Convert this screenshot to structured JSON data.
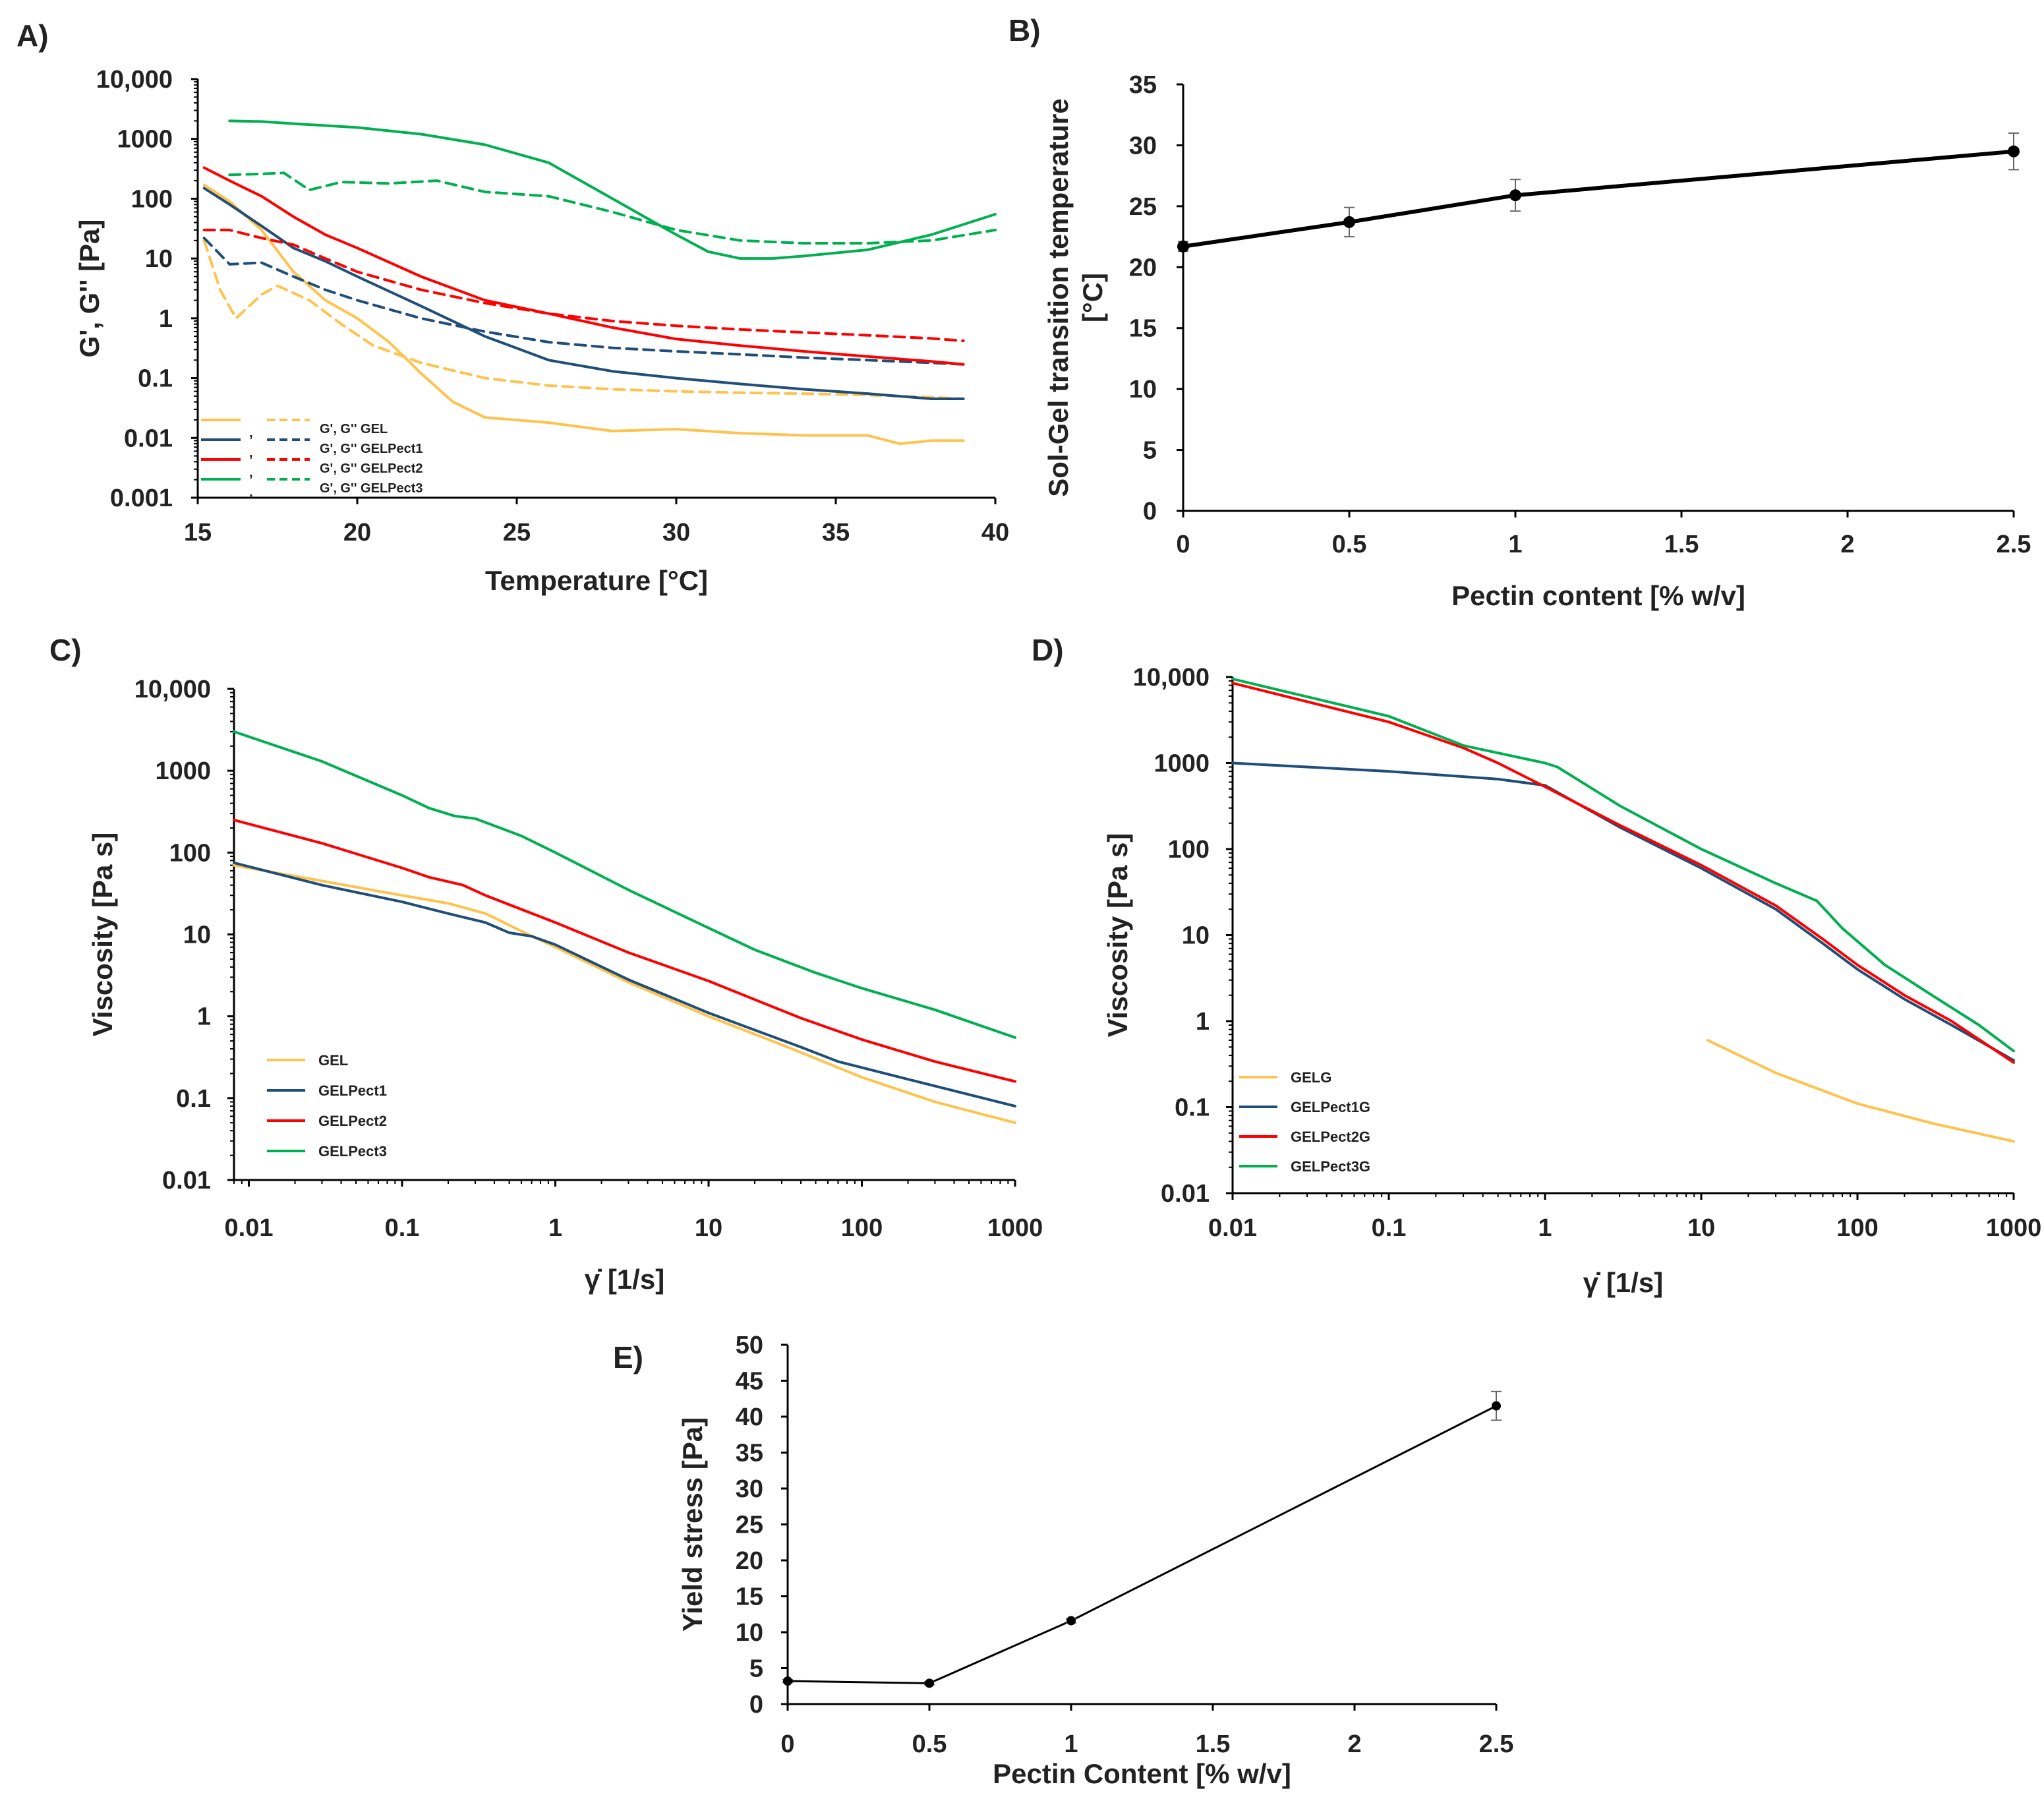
{
  "chart_data": [
    {
      "panel": "A)",
      "type": "line",
      "xlabel": "Temperature [°C]",
      "ylabel": "G', G'' [Pa]",
      "xlim": [
        15,
        40
      ],
      "ylim": [
        0.001,
        10000
      ],
      "yscale": "log",
      "xticks": [
        "15",
        "20",
        "25",
        "30",
        "35",
        "40"
      ],
      "yticks": [
        "10,000",
        "1000",
        "100",
        "10",
        "1",
        "0.1",
        "0.01",
        "0.001"
      ],
      "legend": [
        "G', G'' GEL",
        "G', G'' GELPect1",
        "G', G'' GELPect2",
        "G', G'' GELPect3"
      ],
      "legend_sep": ",",
      "legend_position": "bottom-left",
      "series": [
        {
          "name": "G' GEL",
          "color": "#FFC34D",
          "dash": false,
          "x": [
            15.2,
            16,
            17,
            18,
            19,
            20,
            21,
            22,
            23,
            24,
            26,
            28,
            30,
            32,
            34,
            36,
            37,
            38,
            39
          ],
          "y": [
            170,
            90,
            30,
            6,
            2,
            1,
            0.4,
            0.12,
            0.04,
            0.022,
            0.018,
            0.013,
            0.014,
            0.012,
            0.011,
            0.011,
            0.008,
            0.009,
            0.009
          ]
        },
        {
          "name": "G'' GEL",
          "color": "#FFC34D",
          "dash": true,
          "x": [
            15.2,
            15.7,
            16.2,
            17,
            17.5,
            18.5,
            19.5,
            20.5,
            22,
            24,
            26,
            28,
            30,
            32,
            34,
            36,
            38,
            39
          ],
          "y": [
            20,
            3,
            1,
            2.5,
            3.5,
            2,
            0.8,
            0.35,
            0.18,
            0.1,
            0.075,
            0.065,
            0.06,
            0.057,
            0.055,
            0.052,
            0.048,
            0.045
          ]
        },
        {
          "name": "G' GELPect1",
          "color": "#1F4E79",
          "dash": false,
          "x": [
            15.2,
            16,
            17,
            18,
            19,
            20,
            22,
            24,
            26,
            28,
            30,
            32,
            34,
            36,
            38,
            39
          ],
          "y": [
            150,
            80,
            35,
            15,
            9,
            5,
            1.6,
            0.5,
            0.2,
            0.13,
            0.1,
            0.08,
            0.065,
            0.055,
            0.045,
            0.045
          ]
        },
        {
          "name": "G'' GELPect1",
          "color": "#1F4E79",
          "dash": true,
          "x": [
            15.2,
            16,
            17,
            18,
            19,
            20,
            22,
            24,
            26,
            28,
            30,
            32,
            34,
            36,
            38,
            39
          ],
          "y": [
            22,
            8,
            8.5,
            5,
            3,
            2,
            1,
            0.6,
            0.4,
            0.32,
            0.28,
            0.25,
            0.22,
            0.2,
            0.18,
            0.17
          ]
        },
        {
          "name": "G' GELPect2",
          "color": "#FF0000",
          "dash": false,
          "x": [
            15.2,
            16,
            17,
            18,
            19,
            20,
            22,
            24,
            26,
            28,
            30,
            32,
            34,
            36,
            38,
            39
          ],
          "y": [
            330,
            200,
            110,
            50,
            25,
            15,
            5,
            2,
            1.2,
            0.7,
            0.45,
            0.35,
            0.28,
            0.23,
            0.19,
            0.17
          ]
        },
        {
          "name": "G'' GELPect2",
          "color": "#FF0000",
          "dash": true,
          "x": [
            15.2,
            16,
            17,
            18,
            19,
            20,
            22,
            24,
            26,
            28,
            30,
            32,
            34,
            36,
            38,
            39
          ],
          "y": [
            30,
            30,
            22,
            17,
            10,
            6,
            3,
            1.8,
            1.2,
            0.9,
            0.75,
            0.65,
            0.58,
            0.52,
            0.46,
            0.42
          ]
        },
        {
          "name": "G' GELPect3",
          "color": "#00B050",
          "dash": false,
          "x": [
            16,
            17,
            18,
            20,
            22,
            24,
            26,
            28,
            29,
            30,
            31,
            32,
            33,
            34,
            36,
            38,
            40
          ],
          "y": [
            2000,
            1950,
            1800,
            1550,
            1200,
            800,
            400,
            100,
            50,
            25,
            13,
            10,
            10,
            11,
            14,
            25,
            55
          ]
        },
        {
          "name": "G'' GELPect3",
          "color": "#00B050",
          "dash": true,
          "x": [
            16,
            17,
            17.7,
            18.5,
            19.5,
            21,
            22.5,
            24,
            26,
            28,
            30,
            32,
            34,
            36,
            38,
            40
          ],
          "y": [
            250,
            260,
            270,
            140,
            190,
            180,
            200,
            130,
            110,
            60,
            30,
            20,
            18,
            18,
            20,
            30
          ]
        }
      ]
    },
    {
      "panel": "B)",
      "type": "line",
      "xlabel": "Pectin content [% w/v]",
      "ylabel": "Sol-Gel transition temperature [°C]",
      "ylabel_lines": [
        "Sol-Gel transition temperature",
        "[°C]"
      ],
      "xlim": [
        0,
        2.5
      ],
      "ylim": [
        0,
        35
      ],
      "xticks": [
        "0",
        "0.5",
        "1",
        "1.5",
        "2",
        "2.5"
      ],
      "yticks": [
        "0",
        "5",
        "10",
        "15",
        "20",
        "25",
        "30",
        "35"
      ],
      "series": [
        {
          "name": "Sol-Gel transition temperature",
          "color": "#000000",
          "x": [
            0,
            0.5,
            1,
            2.5
          ],
          "y": [
            21.7,
            23.7,
            25.9,
            29.5
          ],
          "err": [
            0.4,
            1.2,
            1.3,
            1.5
          ]
        }
      ]
    },
    {
      "panel": "C)",
      "type": "line",
      "xlabel": "γ̇ [1/s]",
      "ylabel": "Viscosity  [Pa s]",
      "xscale": "log",
      "yscale": "log",
      "xlim": [
        0.008,
        1000
      ],
      "ylim": [
        0.01,
        10000
      ],
      "xticks": [
        "0.01",
        "0.1",
        "1",
        "10",
        "100",
        "1000"
      ],
      "yticks": [
        "10,000",
        "1000",
        "100",
        "10",
        "1",
        "0.1",
        "0.01"
      ],
      "legend": [
        "GEL",
        "GELPect1",
        "GELPect2",
        "GELPect3"
      ],
      "legend_position": "bottom-left",
      "series": [
        {
          "name": "GEL",
          "color": "#FFC34D",
          "x": [
            0.008,
            0.03,
            0.1,
            0.2,
            0.35,
            0.6,
            1,
            3,
            10,
            30,
            100,
            300,
            1000
          ],
          "y": [
            70,
            45,
            30,
            24,
            18,
            11,
            7,
            2.6,
            1,
            0.45,
            0.18,
            0.09,
            0.05
          ]
        },
        {
          "name": "GELPect1",
          "color": "#1F4E79",
          "x": [
            0.008,
            0.03,
            0.1,
            0.2,
            0.35,
            0.5,
            0.7,
            1,
            3,
            10,
            40,
            70,
            200,
            1000
          ],
          "y": [
            75,
            40,
            25,
            18,
            14,
            10.5,
            9.5,
            7.5,
            2.8,
            1.1,
            0.42,
            0.28,
            0.17,
            0.08
          ]
        },
        {
          "name": "GELPect2",
          "color": "#FF0000",
          "x": [
            0.008,
            0.03,
            0.1,
            0.15,
            0.25,
            0.35,
            1,
            3,
            10,
            20,
            40,
            100,
            300,
            1000
          ],
          "y": [
            250,
            130,
            65,
            50,
            40,
            30,
            14,
            6,
            2.7,
            1.6,
            0.95,
            0.52,
            0.28,
            0.16
          ]
        },
        {
          "name": "GELPect3",
          "color": "#00B050",
          "x": [
            0.008,
            0.03,
            0.1,
            0.15,
            0.22,
            0.3,
            0.6,
            1,
            3,
            10,
            20,
            50,
            100,
            300,
            1000
          ],
          "y": [
            3000,
            1300,
            500,
            350,
            280,
            260,
            160,
            100,
            35,
            12,
            6.5,
            3.4,
            2.2,
            1.2,
            0.55
          ]
        }
      ]
    },
    {
      "panel": "D)",
      "type": "line",
      "xlabel": "γ̇ [1/s]",
      "ylabel": "Viscosity [Pa s]",
      "xscale": "log",
      "yscale": "log",
      "xlim": [
        0.01,
        1000
      ],
      "ylim": [
        0.01,
        10000
      ],
      "xticks": [
        "0.01",
        "0.1",
        "1",
        "10",
        "100",
        "1000"
      ],
      "yticks": [
        "10,000",
        "1000",
        "100",
        "10",
        "1",
        "0.1",
        "0.01"
      ],
      "legend": [
        "GELG",
        "GELPect1G",
        "GELPect2G",
        "GELPect3G"
      ],
      "legend_position": "bottom-left",
      "series": [
        {
          "name": "GELG",
          "color": "#FFC34D",
          "x": [
            11,
            30,
            100,
            300,
            1000
          ],
          "y": [
            0.6,
            0.25,
            0.11,
            0.065,
            0.04
          ]
        },
        {
          "name": "GELPect1G",
          "color": "#1F4E79",
          "x": [
            0.01,
            0.1,
            0.5,
            1,
            3,
            10,
            30,
            60,
            100,
            200,
            400,
            1000
          ],
          "y": [
            1000,
            800,
            650,
            550,
            180,
            60,
            20,
            8,
            4,
            1.8,
            0.9,
            0.35
          ]
        },
        {
          "name": "GELPect2G",
          "color": "#FF0000",
          "x": [
            0.01,
            0.1,
            0.3,
            0.5,
            0.8,
            1,
            3,
            10,
            30,
            60,
            100,
            200,
            400,
            1000
          ],
          "y": [
            8500,
            3000,
            1500,
            1000,
            650,
            530,
            190,
            65,
            22,
            9,
            4.5,
            2,
            1,
            0.33
          ]
        },
        {
          "name": "GELPect3G",
          "color": "#00B050",
          "x": [
            0.01,
            0.1,
            0.3,
            1,
            1.2,
            3,
            10,
            30,
            55,
            80,
            150,
            300,
            600,
            1000
          ],
          "y": [
            9500,
            3500,
            1600,
            1000,
            900,
            320,
            100,
            40,
            25,
            12,
            4.5,
            2,
            0.9,
            0.45
          ]
        }
      ]
    },
    {
      "panel": "E)",
      "type": "line",
      "xlabel": "Pectin Content [% w/v]",
      "ylabel": "Yield stress [Pa]",
      "xlim": [
        0,
        2.5
      ],
      "ylim": [
        0,
        50
      ],
      "xticks": [
        "0",
        "0.5",
        "1",
        "1.5",
        "2",
        "2.5"
      ],
      "yticks": [
        "0",
        "5",
        "10",
        "15",
        "20",
        "25",
        "30",
        "35",
        "40",
        "45",
        "50"
      ],
      "series": [
        {
          "name": "Yield stress",
          "color": "#000000",
          "x": [
            0,
            0.5,
            1,
            2.5
          ],
          "y": [
            3.2,
            2.9,
            11.6,
            41.5
          ],
          "err": [
            0.2,
            0.2,
            0.3,
            2.0
          ]
        }
      ]
    }
  ]
}
